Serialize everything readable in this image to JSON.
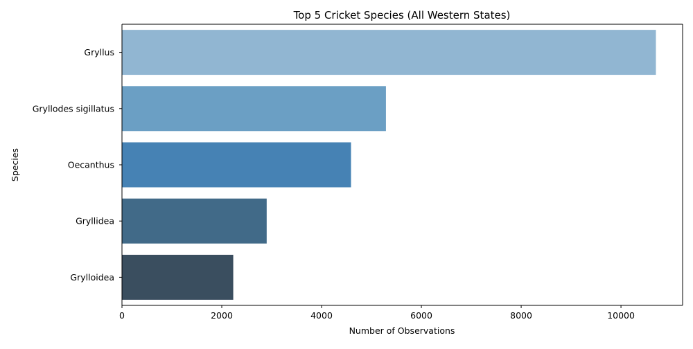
{
  "chart_data": {
    "type": "bar",
    "orientation": "horizontal",
    "title": "Top 5 Cricket Species (All Western States)",
    "xlabel": "Number of Observations",
    "ylabel": "Species",
    "categories": [
      "Gryllus",
      "Gryllodes sigillatus",
      "Oecanthus",
      "Gryllidea",
      "Grylloidea"
    ],
    "values": [
      10700,
      5290,
      4590,
      2900,
      2230
    ],
    "colors": [
      "#91b6d2",
      "#6b9fc4",
      "#4682b4",
      "#416a88",
      "#3a4e5f"
    ],
    "xlim": [
      0,
      11235
    ],
    "xticks": [
      0,
      2000,
      4000,
      6000,
      8000,
      10000
    ],
    "xtick_labels": [
      "0",
      "2000",
      "4000",
      "6000",
      "8000",
      "10000"
    ],
    "grid": false,
    "legend": "none"
  }
}
